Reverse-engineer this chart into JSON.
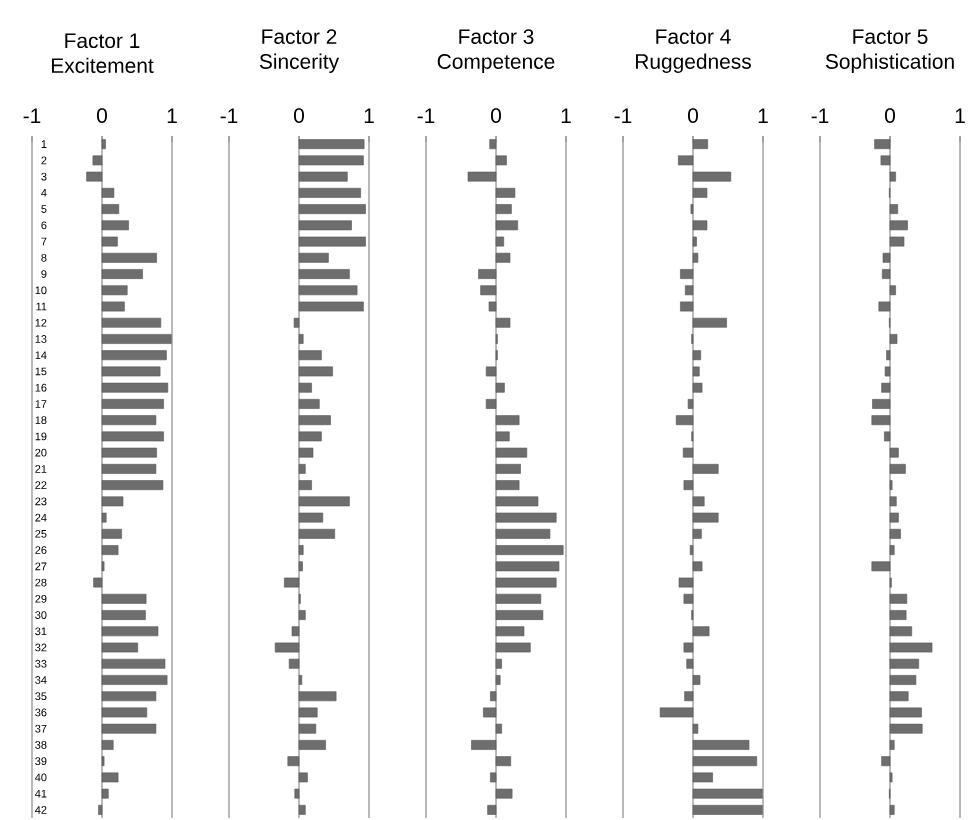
{
  "chart_data": [
    {
      "type": "bar",
      "orientation": "horizontal",
      "title": "Factor 1",
      "subtitle": "Excitement",
      "color": "#6e6e6e",
      "xlim": [
        -1,
        1
      ],
      "xticks": [
        -1,
        0,
        1
      ],
      "grid": "x",
      "categories": [
        "1",
        "2",
        "3",
        "4",
        "5",
        "6",
        "7",
        "8",
        "9",
        "10",
        "11",
        "12",
        "13",
        "14",
        "15",
        "16",
        "17",
        "18",
        "19",
        "20",
        "21",
        "22",
        "23",
        "24",
        "25",
        "26",
        "27",
        "28",
        "29",
        "30",
        "31",
        "32",
        "33",
        "34",
        "35",
        "36",
        "37",
        "38",
        "39",
        "40",
        "41",
        "42"
      ],
      "values": [
        0.05,
        -0.13,
        -0.22,
        0.17,
        0.24,
        0.38,
        0.22,
        0.78,
        0.58,
        0.36,
        0.32,
        0.84,
        0.99,
        0.92,
        0.83,
        0.94,
        0.88,
        0.77,
        0.88,
        0.78,
        0.77,
        0.87,
        0.3,
        0.06,
        0.28,
        0.23,
        0.03,
        -0.12,
        0.63,
        0.62,
        0.8,
        0.51,
        0.9,
        0.93,
        0.77,
        0.64,
        0.77,
        0.16,
        0.03,
        0.23,
        0.09,
        -0.05
      ]
    },
    {
      "type": "bar",
      "orientation": "horizontal",
      "title": "Factor 2",
      "subtitle": "Sincerity",
      "color": "#6e6e6e",
      "xlim": [
        -1,
        1
      ],
      "xticks": [
        -1,
        0,
        1
      ],
      "grid": "x",
      "tick_labels": "x",
      "categories": [
        "1",
        "2",
        "3",
        "4",
        "5",
        "6",
        "7",
        "8",
        "9",
        "10",
        "11",
        "12",
        "13",
        "14",
        "15",
        "16",
        "17",
        "18",
        "19",
        "20",
        "21",
        "22",
        "23",
        "24",
        "25",
        "26",
        "27",
        "28",
        "29",
        "30",
        "31",
        "32",
        "33",
        "34",
        "35",
        "36",
        "37",
        "38",
        "39",
        "40",
        "41",
        "42"
      ],
      "values": [
        0.93,
        0.92,
        0.69,
        0.88,
        0.95,
        0.75,
        0.95,
        0.42,
        0.72,
        0.83,
        0.92,
        -0.07,
        0.06,
        0.32,
        0.48,
        0.18,
        0.29,
        0.45,
        0.32,
        0.2,
        0.09,
        0.18,
        0.72,
        0.34,
        0.51,
        0.06,
        0.05,
        -0.21,
        0.02,
        0.09,
        -0.1,
        -0.34,
        -0.14,
        0.04,
        0.53,
        0.26,
        0.24,
        0.38,
        -0.16,
        0.12,
        -0.06,
        0.09
      ]
    },
    {
      "type": "bar",
      "orientation": "horizontal",
      "title": "Factor 3",
      "subtitle": "Competence",
      "color": "#6e6e6e",
      "xlim": [
        -1,
        1
      ],
      "xticks": [
        -1,
        0,
        1
      ],
      "grid": "x",
      "tick_labels": "x",
      "categories": [
        "1",
        "2",
        "3",
        "4",
        "5",
        "6",
        "7",
        "8",
        "9",
        "10",
        "11",
        "12",
        "13",
        "14",
        "15",
        "16",
        "17",
        "18",
        "19",
        "20",
        "21",
        "22",
        "23",
        "24",
        "25",
        "26",
        "27",
        "28",
        "29",
        "30",
        "31",
        "32",
        "33",
        "34",
        "35",
        "36",
        "37",
        "38",
        "39",
        "40",
        "41",
        "42"
      ],
      "values": [
        -0.09,
        0.15,
        -0.4,
        0.27,
        0.22,
        0.31,
        0.11,
        0.2,
        -0.25,
        -0.22,
        -0.1,
        0.2,
        0.02,
        0.02,
        -0.14,
        0.12,
        -0.14,
        0.33,
        0.19,
        0.44,
        0.35,
        0.33,
        0.6,
        0.86,
        0.77,
        0.96,
        0.9,
        0.86,
        0.64,
        0.67,
        0.4,
        0.49,
        0.08,
        0.06,
        -0.08,
        -0.18,
        0.08,
        -0.35,
        0.21,
        -0.08,
        0.23,
        -0.12
      ]
    },
    {
      "type": "bar",
      "orientation": "horizontal",
      "title": "Factor 4",
      "subtitle": "Ruggedness",
      "color": "#6e6e6e",
      "xlim": [
        -1,
        1
      ],
      "xticks": [
        -1,
        0,
        1
      ],
      "grid": "x",
      "tick_labels": "x",
      "categories": [
        "1",
        "2",
        "3",
        "4",
        "5",
        "6",
        "7",
        "8",
        "9",
        "10",
        "11",
        "12",
        "13",
        "14",
        "15",
        "16",
        "17",
        "18",
        "19",
        "20",
        "21",
        "22",
        "23",
        "24",
        "25",
        "26",
        "27",
        "28",
        "29",
        "30",
        "31",
        "32",
        "33",
        "34",
        "35",
        "36",
        "37",
        "38",
        "39",
        "40",
        "41",
        "42"
      ],
      "values": [
        0.21,
        -0.21,
        0.54,
        0.2,
        -0.03,
        0.2,
        0.05,
        0.07,
        -0.18,
        -0.11,
        -0.18,
        0.48,
        -0.02,
        0.11,
        0.09,
        0.13,
        -0.07,
        -0.24,
        -0.02,
        -0.14,
        0.36,
        -0.13,
        0.16,
        0.36,
        0.12,
        -0.04,
        0.13,
        -0.2,
        -0.13,
        -0.02,
        0.23,
        -0.13,
        -0.09,
        0.1,
        -0.12,
        -0.47,
        0.07,
        0.8,
        0.91,
        0.28,
        0.99,
        0.99
      ]
    },
    {
      "type": "bar",
      "orientation": "horizontal",
      "title": "Factor 5",
      "subtitle": "Sophistication",
      "color": "#6e6e6e",
      "xlim": [
        -1,
        1
      ],
      "xticks": [
        -1,
        0,
        1
      ],
      "grid": "x",
      "tick_labels": "x",
      "categories": [
        "1",
        "2",
        "3",
        "4",
        "5",
        "6",
        "7",
        "8",
        "9",
        "10",
        "11",
        "12",
        "13",
        "14",
        "15",
        "16",
        "17",
        "18",
        "19",
        "20",
        "21",
        "22",
        "23",
        "24",
        "25",
        "26",
        "27",
        "28",
        "29",
        "30",
        "31",
        "32",
        "33",
        "34",
        "35",
        "36",
        "37",
        "38",
        "39",
        "40",
        "41",
        "42"
      ],
      "values": [
        -0.22,
        -0.13,
        0.08,
        -0.01,
        0.11,
        0.25,
        0.2,
        -0.1,
        -0.11,
        0.08,
        -0.16,
        -0.01,
        0.1,
        -0.05,
        -0.07,
        -0.12,
        -0.25,
        -0.26,
        -0.08,
        0.12,
        0.22,
        0.03,
        0.09,
        0.12,
        0.15,
        0.06,
        -0.26,
        0.02,
        0.24,
        0.23,
        0.31,
        0.6,
        0.41,
        0.37,
        0.26,
        0.45,
        0.46,
        0.06,
        -0.12,
        0.03,
        -0.01,
        0.06
      ]
    }
  ]
}
